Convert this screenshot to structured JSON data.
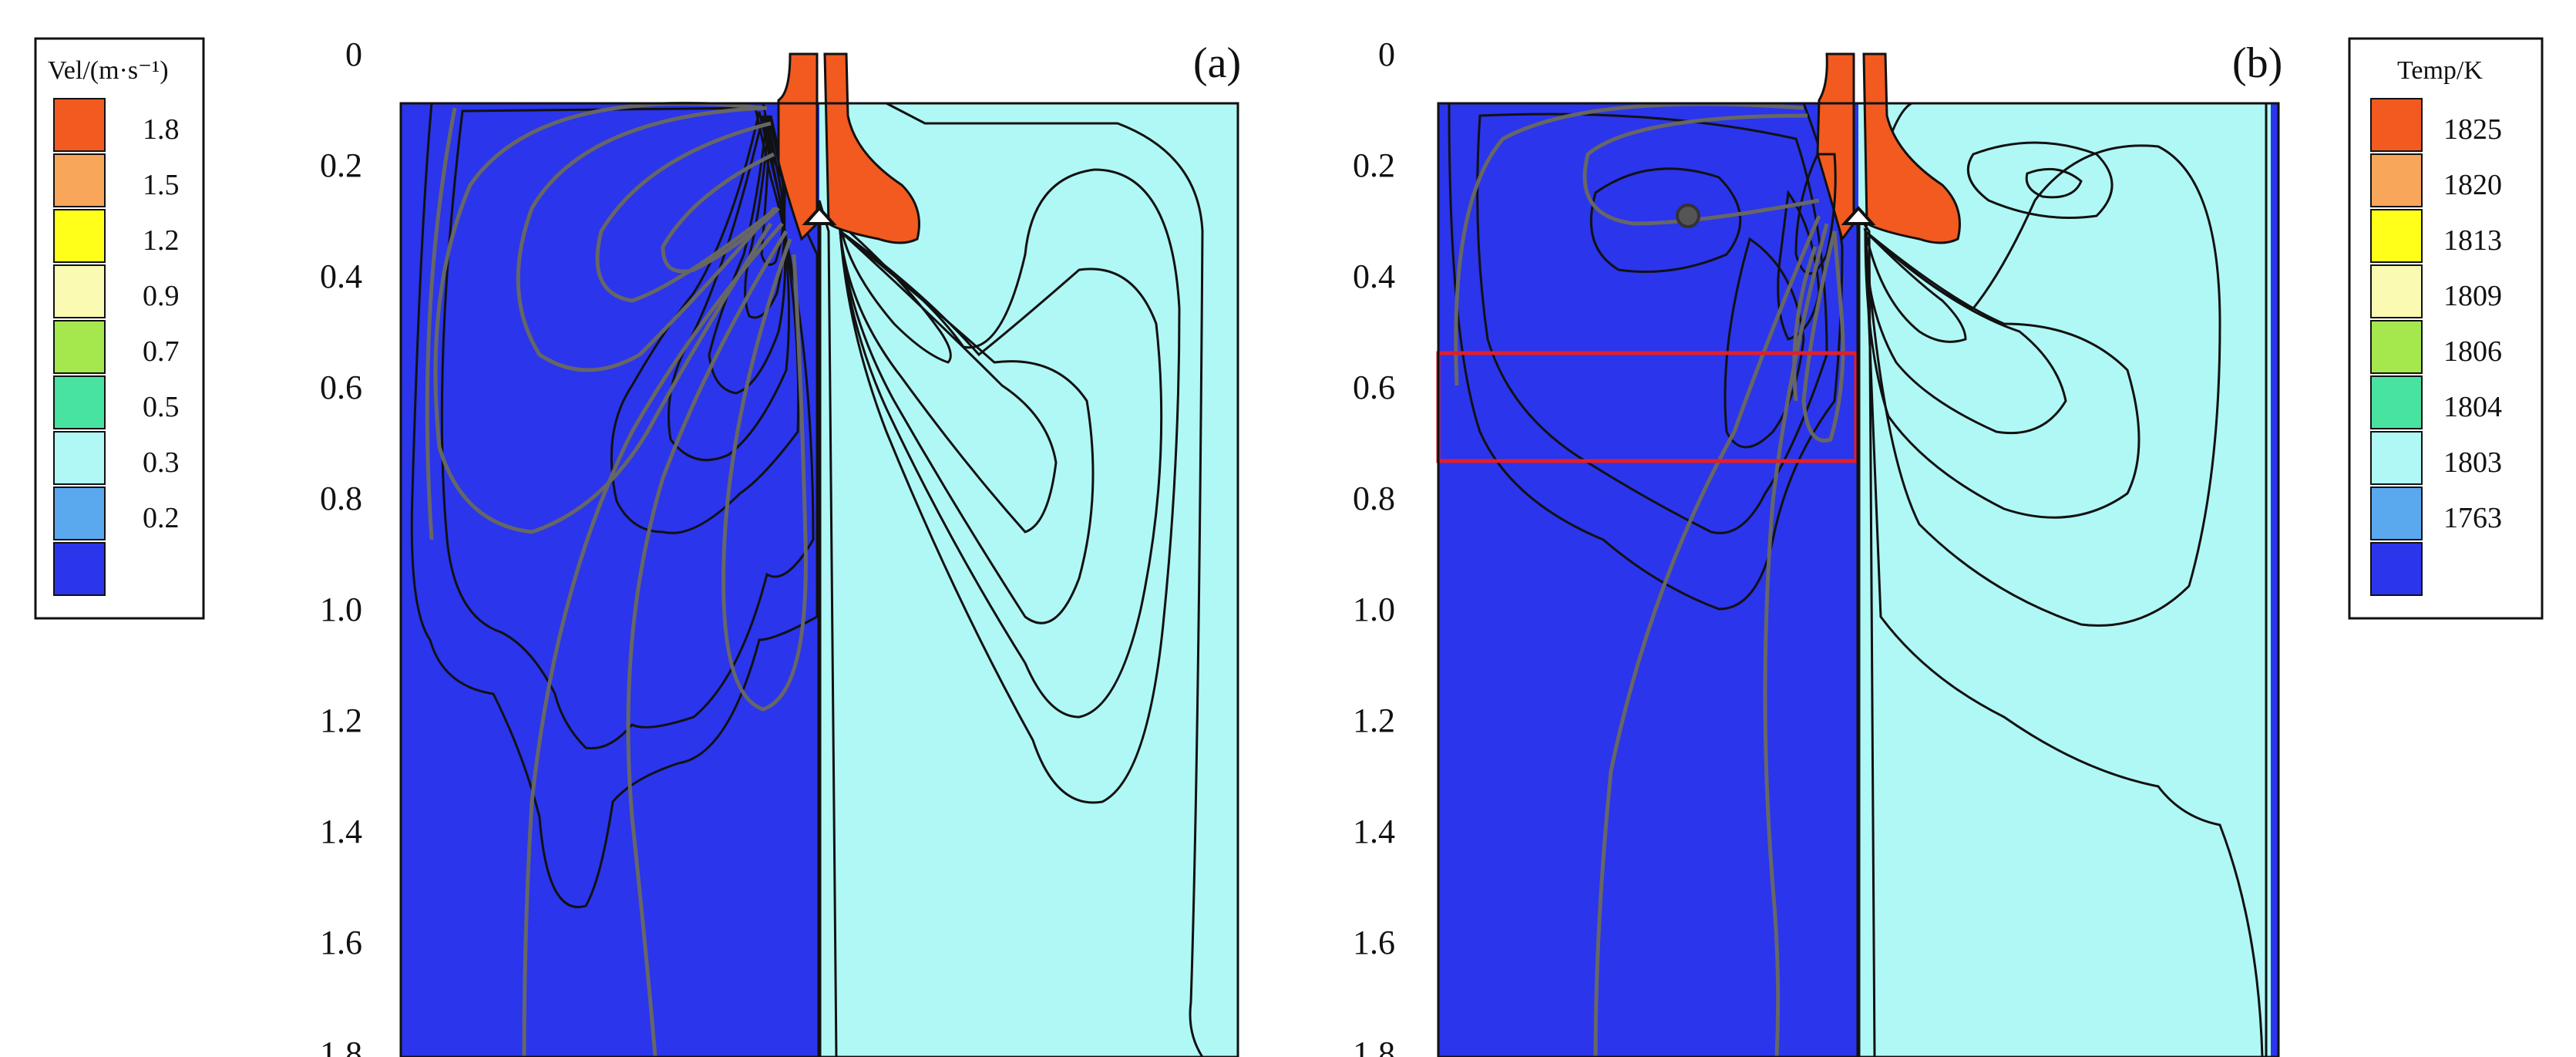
{
  "velocity_panel": {
    "label": "(a)",
    "legend": {
      "title": "Vel/(m·s⁻¹)",
      "levels": [
        {
          "value": "1.8",
          "color": "#f25a1f"
        },
        {
          "value": "1.5",
          "color": "#f7a65a"
        },
        {
          "value": "1.2",
          "color": "#ffff1a"
        },
        {
          "value": "0.9",
          "color": "#fbfab2"
        },
        {
          "value": "0.7",
          "color": "#a4e84e"
        },
        {
          "value": "0.5",
          "color": "#49e3a1"
        },
        {
          "value": "0.3",
          "color": "#b0f8f6"
        },
        {
          "value": "0.2",
          "color": "#5aa9ef"
        }
      ],
      "base_color": "#2b35ec"
    },
    "depth_ticks": [
      "0",
      "0.2",
      "0.4",
      "0.6",
      "0.8",
      "1.0",
      "1.2",
      "1.4",
      "1.6",
      "1.8"
    ]
  },
  "temperature_panel": {
    "label": "(b)",
    "legend": {
      "title": "Temp/K",
      "levels": [
        {
          "value": "1825",
          "color": "#f25a1f"
        },
        {
          "value": "1820",
          "color": "#f7a65a"
        },
        {
          "value": "1813",
          "color": "#ffff1a"
        },
        {
          "value": "1809",
          "color": "#fbfab2"
        },
        {
          "value": "1806",
          "color": "#a4e84e"
        },
        {
          "value": "1804",
          "color": "#49e3a1"
        },
        {
          "value": "1803",
          "color": "#b0f8f6"
        },
        {
          "value": "1763",
          "color": "#5aa9ef"
        }
      ],
      "base_color": "#2b35ec"
    },
    "depth_ticks": [
      "0",
      "0.2",
      "0.4",
      "0.6",
      "0.8",
      "1.0",
      "1.2",
      "1.4",
      "1.6",
      "1.8"
    ]
  },
  "colors": {
    "highlight_box": "#e0202a",
    "streamline": "#666666",
    "isoline": "#111111"
  }
}
